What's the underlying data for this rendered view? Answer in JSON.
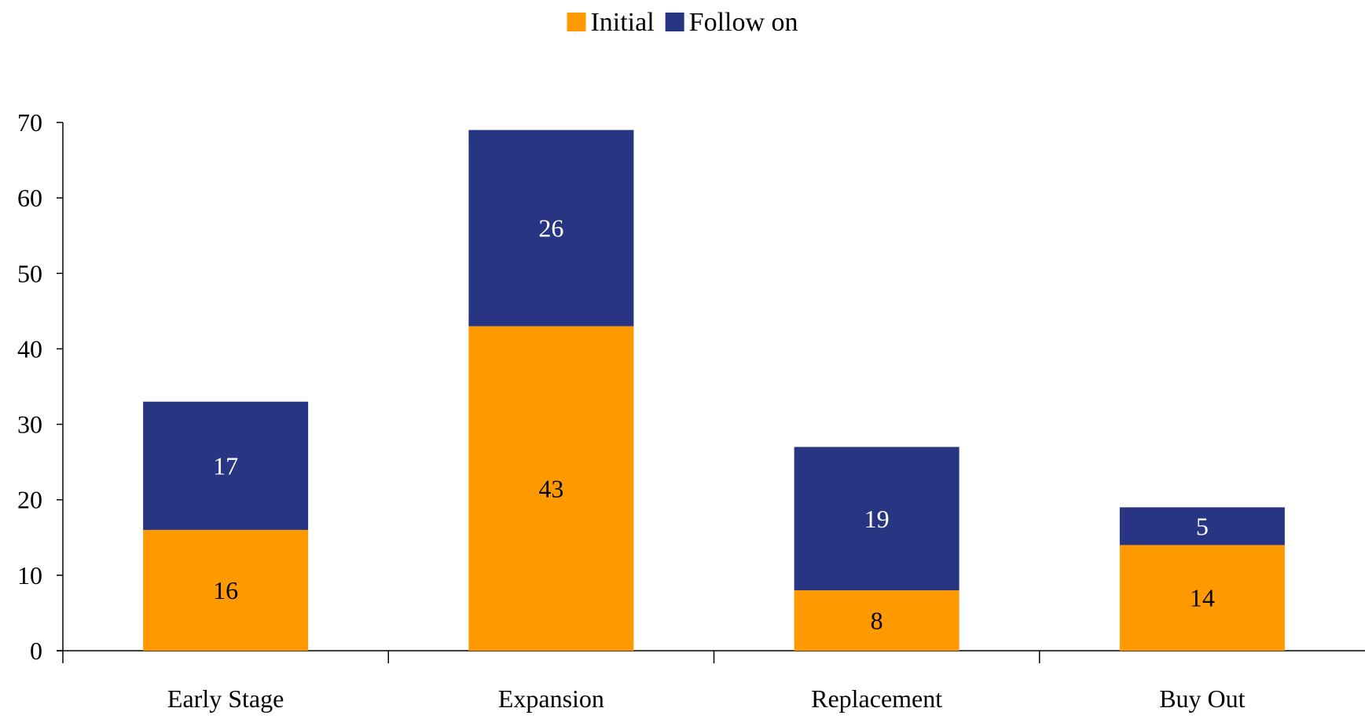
{
  "chart_data": {
    "type": "bar",
    "stacked": true,
    "title": "",
    "xlabel": "",
    "ylabel": "",
    "categories": [
      "Early Stage",
      "Expansion",
      "Replacement",
      "Buy Out"
    ],
    "series": [
      {
        "name": "Initial",
        "values": [
          16,
          43,
          8,
          14
        ],
        "color": "#FF9900"
      },
      {
        "name": "Follow on",
        "values": [
          17,
          26,
          19,
          5
        ],
        "color": "#283583"
      }
    ],
    "data_label_colors": {
      "Initial": "#000000",
      "Follow on": "#FFFFFF"
    },
    "ylim": [
      0,
      70
    ],
    "yticks": [
      0,
      10,
      20,
      30,
      40,
      50,
      60,
      70
    ],
    "grid": false,
    "legend_position": "top-center"
  }
}
